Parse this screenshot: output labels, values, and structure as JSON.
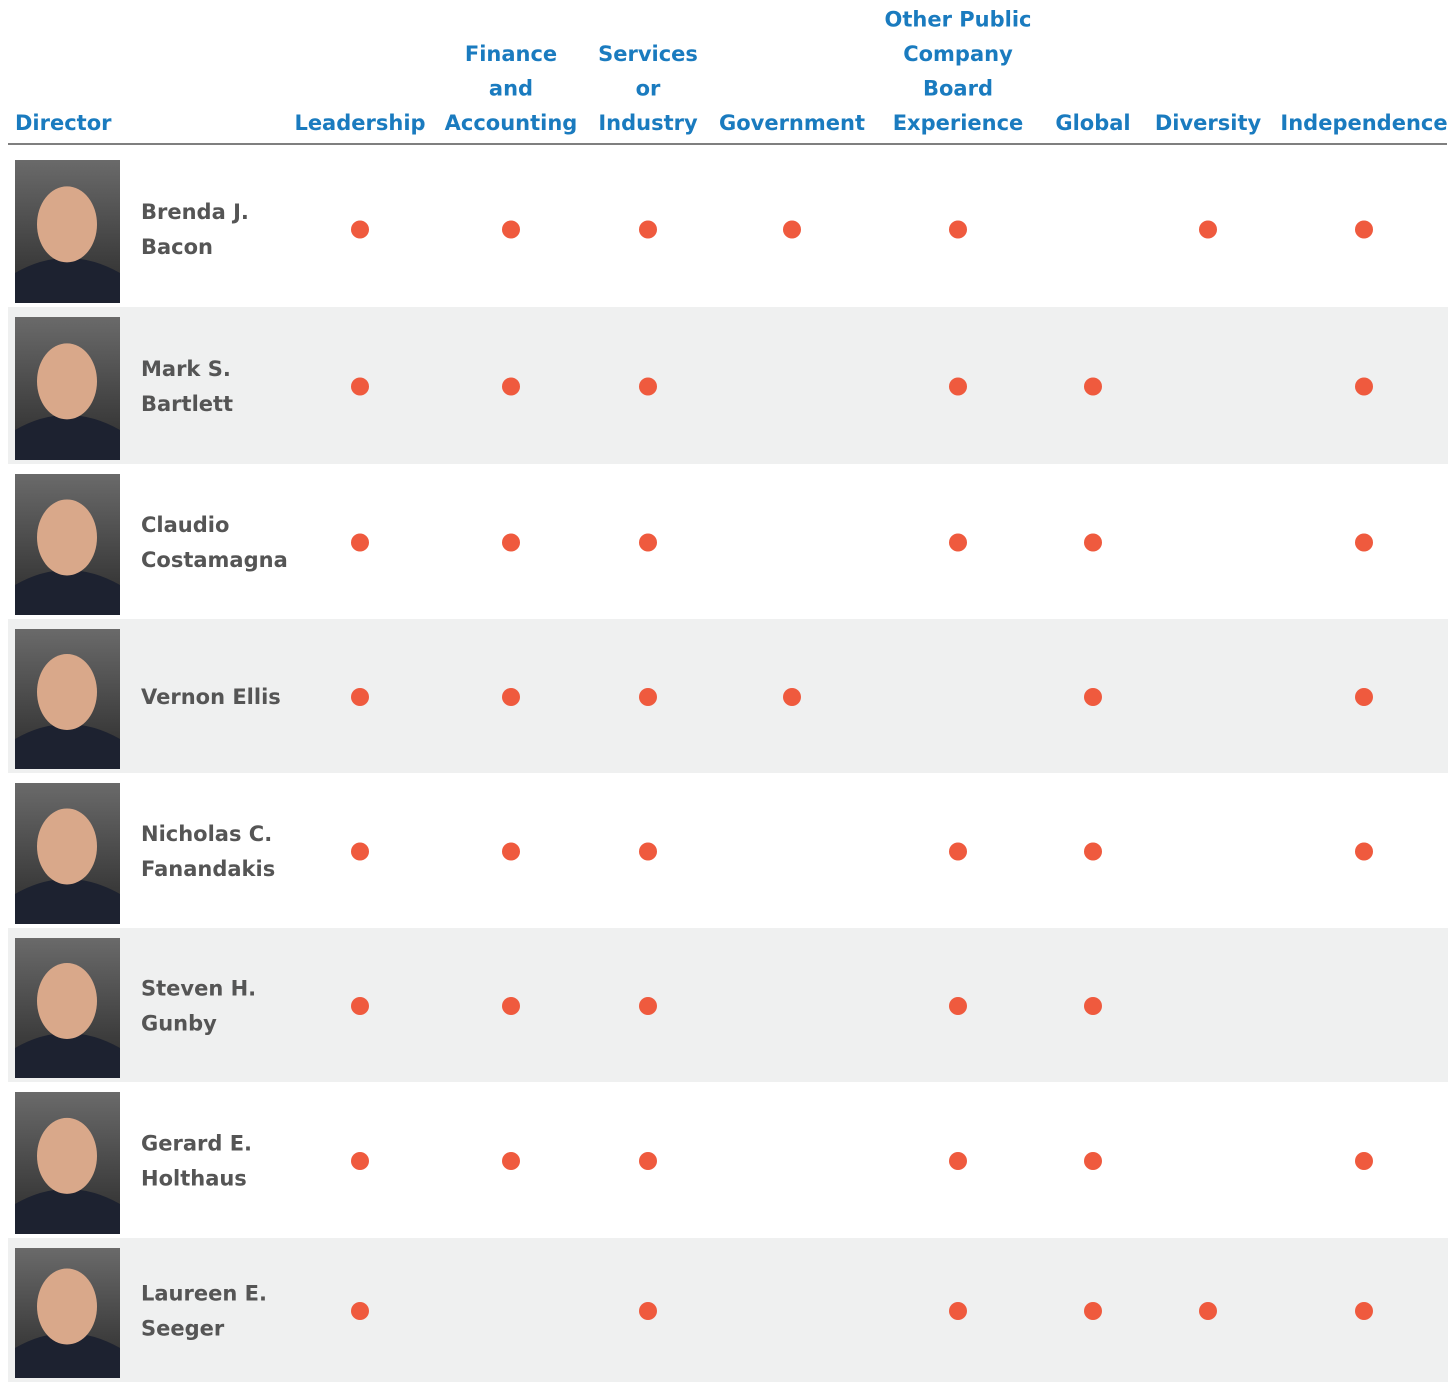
{
  "table": {
    "columns": [
      [
        "Director"
      ],
      [
        "Leadership"
      ],
      [
        "Finance",
        "and",
        "Accounting"
      ],
      [
        "Services",
        "or",
        "Industry"
      ],
      [
        "Government"
      ],
      [
        "Other Public",
        "Company",
        "Board",
        "Experience"
      ],
      [
        "Global"
      ],
      [
        "Diversity"
      ],
      [
        "Independence"
      ]
    ],
    "rows": [
      {
        "name": [
          "Brenda J.",
          "Bacon"
        ],
        "marks": [
          true,
          true,
          true,
          true,
          true,
          false,
          true,
          true
        ]
      },
      {
        "name": [
          "Mark S.",
          "Bartlett"
        ],
        "marks": [
          true,
          true,
          true,
          false,
          true,
          true,
          false,
          true
        ]
      },
      {
        "name": [
          "Claudio",
          "Costamagna"
        ],
        "marks": [
          true,
          true,
          true,
          false,
          true,
          true,
          false,
          true
        ]
      },
      {
        "name": [
          "Vernon Ellis"
        ],
        "marks": [
          true,
          true,
          true,
          true,
          false,
          true,
          false,
          true
        ]
      },
      {
        "name": [
          "Nicholas C.",
          "Fanandakis"
        ],
        "marks": [
          true,
          true,
          true,
          false,
          true,
          true,
          false,
          true
        ]
      },
      {
        "name": [
          "Steven H.",
          "Gunby"
        ],
        "marks": [
          true,
          true,
          true,
          false,
          true,
          true,
          false,
          false
        ]
      },
      {
        "name": [
          "Gerard E.",
          "Holthaus"
        ],
        "marks": [
          true,
          true,
          true,
          false,
          true,
          true,
          false,
          true
        ]
      },
      {
        "name": [
          "Laureen E.",
          "Seeger"
        ],
        "marks": [
          true,
          false,
          true,
          false,
          true,
          true,
          true,
          true
        ]
      }
    ]
  }
}
